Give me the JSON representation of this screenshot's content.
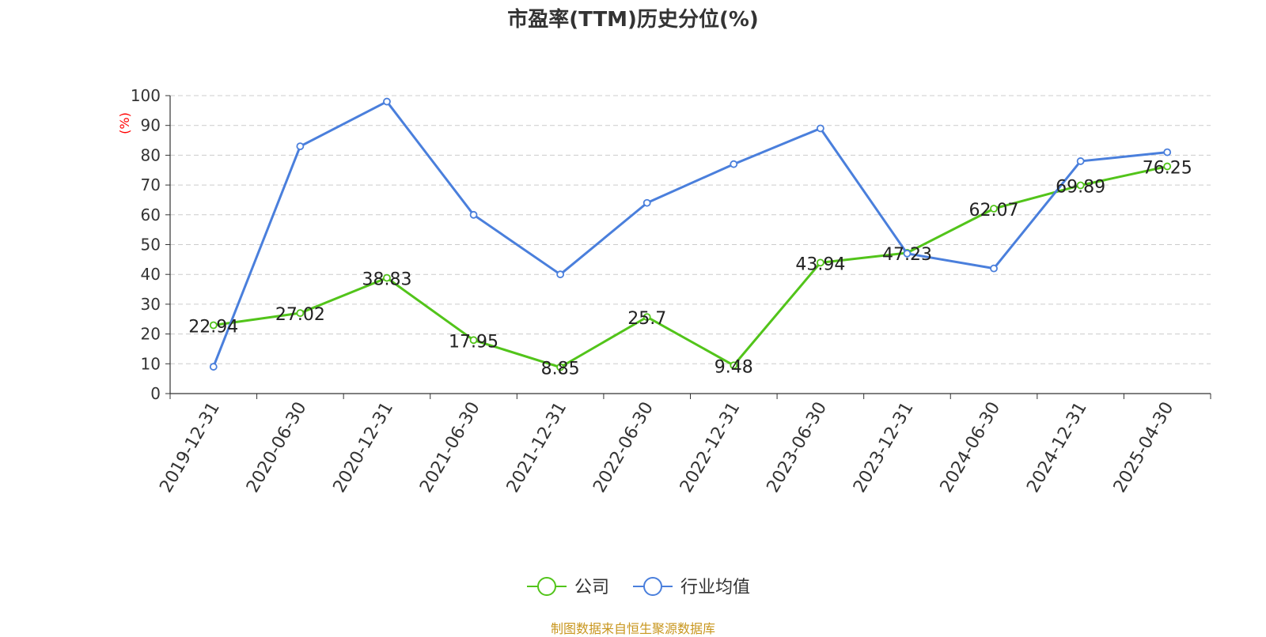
{
  "chart_data": {
    "type": "line",
    "title": "市盈率(TTM)历史分位(%)",
    "ylabel": "(%)",
    "xlabel": "",
    "ylim": [
      0,
      100
    ],
    "yticks": [
      0,
      10,
      20,
      30,
      40,
      50,
      60,
      70,
      80,
      90,
      100
    ],
    "grid": true,
    "legend_position": "bottom-center",
    "categories": [
      "2019-12-31",
      "2020-06-30",
      "2020-12-31",
      "2021-06-30",
      "2021-12-31",
      "2022-06-30",
      "2022-12-31",
      "2023-06-30",
      "2023-12-31",
      "2024-06-30",
      "2024-12-31",
      "2025-04-30"
    ],
    "series": [
      {
        "name": "公司",
        "color": "#52c41a",
        "values": [
          22.94,
          27.02,
          38.83,
          17.95,
          8.85,
          25.7,
          9.48,
          43.94,
          47.23,
          62.07,
          69.89,
          76.25
        ],
        "value_labels": [
          "22.94",
          "27.02",
          "38.83",
          "17.95",
          "8.85",
          "25.7",
          "9.48",
          "43.94",
          "47.23",
          "62.07",
          "69.89",
          "76.25"
        ]
      },
      {
        "name": "行业均值",
        "color": "#4a7fdc",
        "values": [
          9,
          83,
          98,
          60,
          40,
          64,
          77,
          89,
          47,
          42,
          78,
          81
        ]
      }
    ]
  },
  "footer": {
    "source": "制图数据来自恒生聚源数据库"
  },
  "colors": {
    "axis": "#333333",
    "grid": "#cccccc",
    "ylabel": "#ff0000",
    "footer": "#c8961e"
  }
}
